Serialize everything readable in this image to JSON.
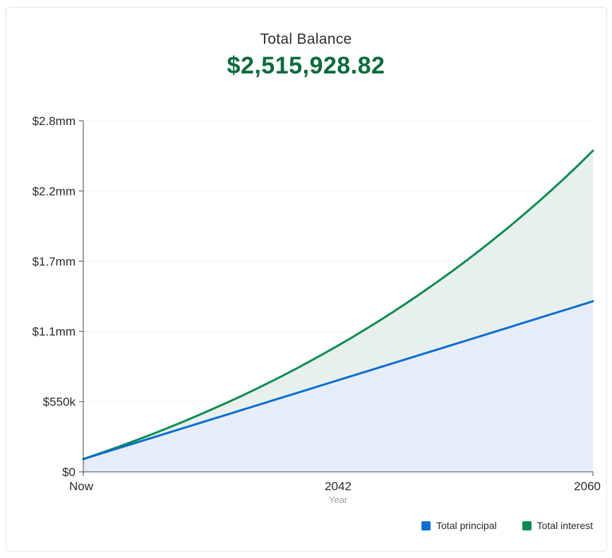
{
  "card": {
    "title": "Total Balance",
    "amount": "$2,515,928.82"
  },
  "colors": {
    "amount_green": "#0c6b3d",
    "axis": "#404449",
    "grid": "#f0f1f2",
    "text_dark": "#26292c",
    "text_muted": "#999ea4",
    "card_border": "#e3e5e8"
  },
  "chart_data": {
    "type": "area",
    "stacked": true,
    "title": "Total Balance",
    "total_balance": "$2,515,928.82",
    "xlabel": "Year",
    "x": [
      2024,
      2025,
      2026,
      2027,
      2028,
      2029,
      2030,
      2031,
      2032,
      2033,
      2034,
      2035,
      2036,
      2037,
      2038,
      2039,
      2040,
      2041,
      2042,
      2043,
      2044,
      2045,
      2046,
      2047,
      2048,
      2049,
      2050,
      2051,
      2052,
      2053,
      2054,
      2055,
      2056,
      2057,
      2058,
      2059,
      2060
    ],
    "x_tick_labels": [
      "Now",
      "2042",
      "2060"
    ],
    "x_tick_years": [
      2024,
      2042,
      2060
    ],
    "y_ticks": [
      0,
      550000,
      1100000,
      1650000,
      2200000,
      2750000
    ],
    "y_tick_labels": [
      "$0",
      "$550k",
      "$1.1mm",
      "$1.7mm",
      "$2.2mm",
      "$2.8mm"
    ],
    "ylim": [
      0,
      2750000
    ],
    "grid": true,
    "legend_position": "bottom-right",
    "series": [
      {
        "name": "Total principal",
        "color": "#0b6ed0",
        "fill": "#e7edf8",
        "values": [
          100000,
          134320,
          168640,
          202960,
          237280,
          271600,
          305920,
          340240,
          374560,
          408880,
          443200,
          477520,
          511840,
          546160,
          580480,
          614800,
          649120,
          683440,
          717760,
          752080,
          786400,
          820720,
          855040,
          889360,
          923680,
          958000,
          992320,
          1026640,
          1060960,
          1095280,
          1129600,
          1163920,
          1198240,
          1232560,
          1266880,
          1301200,
          1335520
        ]
      },
      {
        "name": "Total interest",
        "color": "#0f8b51",
        "fill": "#e8f0ed",
        "values": [
          0,
          3518,
          8186,
          14040,
          21115,
          29450,
          39082,
          50051,
          62397,
          76163,
          91391,
          108126,
          126414,
          146302,
          167839,
          191075,
          216062,
          242852,
          271501,
          302064,
          334602,
          369172,
          405838,
          444663,
          485713,
          529056,
          574760,
          622899,
          673545,
          726776,
          782669,
          841306,
          902770,
          967148,
          1034527,
          1104999,
          1180409
        ]
      }
    ]
  }
}
